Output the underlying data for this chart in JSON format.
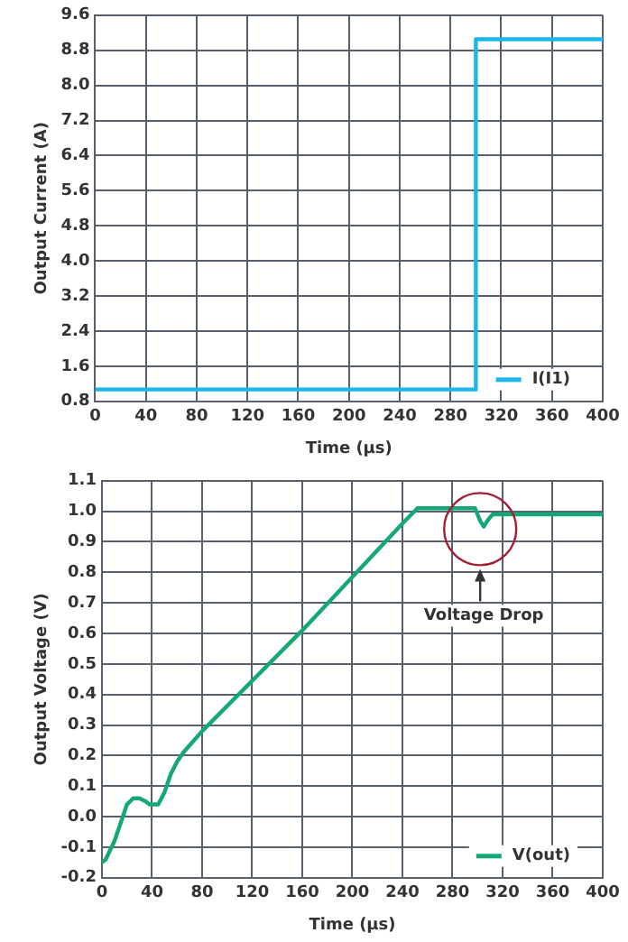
{
  "chart_data": [
    {
      "type": "step",
      "xlabel": "Time (µs)",
      "ylabel": "Output Current (A)",
      "x": [
        0,
        300,
        400
      ],
      "series": [
        {
          "name": "I(I1)",
          "color": "#1ab7ea",
          "values": [
            1.07,
            9.05,
            9.05
          ]
        }
      ],
      "xlim": [
        0,
        400
      ],
      "xticks": [
        0,
        40,
        80,
        120,
        160,
        200,
        240,
        280,
        320,
        360,
        400
      ],
      "ylim": [
        0.8,
        9.6
      ],
      "yticks": [
        {
          "value": 0.8,
          "label": "0.8"
        },
        {
          "value": 1.6,
          "label": "1.6"
        },
        {
          "value": 2.4,
          "label": "2.4"
        },
        {
          "value": 3.2,
          "label": "3.2"
        },
        {
          "value": 4.0,
          "label": "4.0"
        },
        {
          "value": 4.8,
          "label": "4.8"
        },
        {
          "value": 5.6,
          "label": "5.6"
        },
        {
          "value": 6.4,
          "label": "6.4"
        },
        {
          "value": 7.2,
          "label": "7.2"
        },
        {
          "value": 8.0,
          "label": "8.0"
        },
        {
          "value": 8.8,
          "label": "8.8"
        },
        {
          "value": 9.6,
          "label": "9.6"
        }
      ],
      "grid": true,
      "legend": "bottom right",
      "line_style": "solid"
    },
    {
      "type": "line",
      "xlabel": "Time (µs)",
      "ylabel": "Output Voltage (V)",
      "x": [
        0,
        3,
        10,
        20,
        25,
        30,
        35,
        38,
        45,
        50,
        55,
        60,
        65,
        80,
        160,
        240,
        252,
        298,
        302,
        305,
        308,
        312,
        400
      ],
      "series": [
        {
          "name": "V(out)",
          "color": "#14a876",
          "values": [
            -0.15,
            -0.14,
            -0.08,
            0.04,
            0.06,
            0.06,
            0.05,
            0.04,
            0.04,
            0.08,
            0.14,
            0.18,
            0.21,
            0.28,
            0.61,
            0.96,
            1.01,
            1.01,
            0.97,
            0.95,
            0.97,
            0.99,
            0.99
          ]
        }
      ],
      "xlim": [
        0,
        400
      ],
      "xticks": [
        0,
        40,
        80,
        120,
        160,
        200,
        240,
        280,
        320,
        360,
        400
      ],
      "ylim": [
        -0.2,
        1.1
      ],
      "yticks": [
        {
          "value": -0.2,
          "label": "-0.2"
        },
        {
          "value": -0.1,
          "label": "-0.1"
        },
        {
          "value": 0,
          "label": "0.0"
        },
        0.1,
        0.2,
        0.3,
        0.4,
        0.5,
        0.6,
        0.7,
        0.8,
        0.9,
        {
          "value": 1.0,
          "label": "1.0"
        },
        1.1
      ],
      "annotations": [
        "Voltage Drop"
      ],
      "grid": true,
      "legend": "bottom right",
      "line_style": "solid"
    }
  ]
}
